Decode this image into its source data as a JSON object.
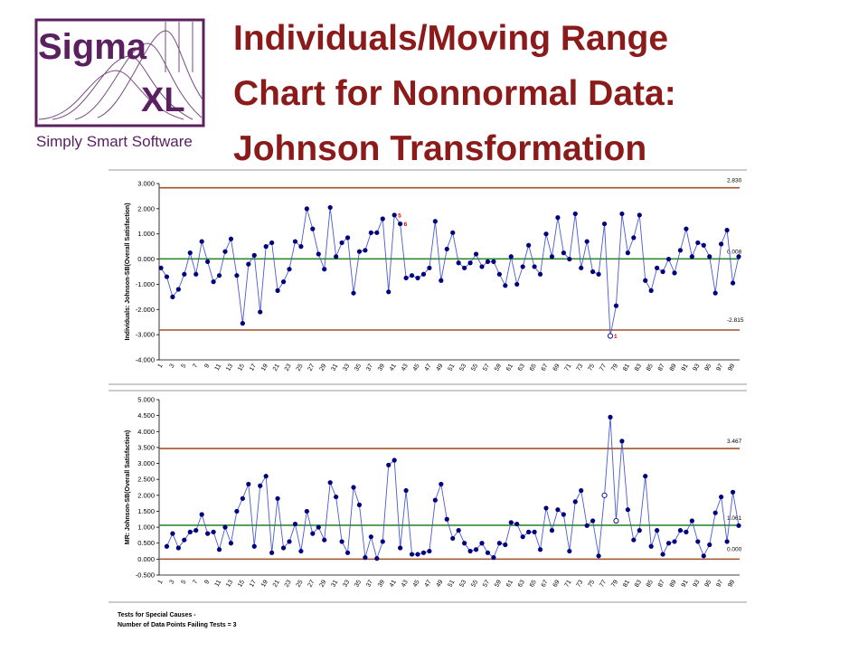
{
  "logo": {
    "word1": "Sigma",
    "word2": "XL",
    "tagline": "Simply Smart Software",
    "color": "#5a2060"
  },
  "title": {
    "line1": "Individuals/Moving Range",
    "line2": "Chart for Nonnormal Data:",
    "line3": "Johnson Transformation",
    "color": "#8b1a1a"
  },
  "chart_data": [
    {
      "type": "line",
      "name": "individuals",
      "ylabel": "Individuals: Johnson-SB(Overall Satisfaction)",
      "ylim": [
        -4,
        3
      ],
      "yticks": [
        "3.000",
        "2.000",
        "1.000",
        "0.000",
        "-1.000",
        "-2.000",
        "-3.000",
        "-4.000"
      ],
      "x": [
        1,
        2,
        3,
        4,
        5,
        6,
        7,
        8,
        9,
        10,
        11,
        12,
        13,
        14,
        15,
        16,
        17,
        18,
        19,
        20,
        21,
        22,
        23,
        24,
        25,
        26,
        27,
        28,
        29,
        30,
        31,
        32,
        33,
        34,
        35,
        36,
        37,
        38,
        39,
        40,
        41,
        42,
        43,
        44,
        45,
        46,
        47,
        48,
        49,
        50,
        51,
        52,
        53,
        54,
        55,
        56,
        57,
        58,
        59,
        60,
        61,
        62,
        63,
        64,
        65,
        66,
        67,
        68,
        69,
        70,
        71,
        72,
        73,
        74,
        75,
        76,
        77,
        78,
        79,
        80,
        81,
        82,
        83,
        84,
        85,
        86,
        87,
        88,
        89,
        90,
        91,
        92,
        93,
        94,
        95,
        96,
        97,
        98,
        99,
        100
      ],
      "xtick_labels": [
        "1",
        "3",
        "5",
        "7",
        "9",
        "11",
        "13",
        "15",
        "17",
        "19",
        "21",
        "23",
        "25",
        "27",
        "29",
        "31",
        "33",
        "35",
        "37",
        "39",
        "41",
        "43",
        "45",
        "47",
        "49",
        "51",
        "53",
        "55",
        "57",
        "59",
        "61",
        "63",
        "65",
        "67",
        "69",
        "71",
        "73",
        "75",
        "77",
        "79",
        "81",
        "83",
        "85",
        "87",
        "89",
        "91",
        "93",
        "95",
        "97",
        "99"
      ],
      "values": [
        -0.35,
        -0.7,
        -1.5,
        -1.2,
        -0.6,
        0.25,
        -0.6,
        0.7,
        -0.1,
        -0.9,
        -0.65,
        0.3,
        0.8,
        -0.65,
        -2.55,
        -0.2,
        0.15,
        -2.1,
        0.5,
        0.65,
        -1.25,
        -0.9,
        -0.4,
        0.7,
        0.5,
        2.0,
        1.2,
        0.2,
        -0.4,
        2.05,
        0.1,
        0.65,
        0.85,
        -1.35,
        0.3,
        0.35,
        1.05,
        1.05,
        1.6,
        -1.3,
        1.75,
        1.4,
        -0.75,
        -0.65,
        -0.75,
        -0.6,
        -0.35,
        1.5,
        -0.85,
        0.4,
        1.05,
        -0.15,
        -0.35,
        -0.15,
        0.2,
        -0.3,
        -0.1,
        -0.1,
        -0.6,
        -1.05,
        0.1,
        -1.0,
        -0.3,
        0.55,
        -0.3,
        -0.6,
        1.0,
        0.1,
        1.65,
        0.25,
        0.0,
        1.8,
        -0.35,
        0.7,
        -0.5,
        -0.6,
        1.4,
        -3.05,
        -1.85,
        1.8,
        0.25,
        0.85,
        1.75,
        -0.85,
        -1.25,
        -0.35,
        -0.5,
        0.0,
        -0.55,
        0.35,
        1.2,
        0.1,
        0.65,
        0.55,
        0.1,
        -1.35,
        0.6,
        1.15,
        -0.95,
        0.1
      ],
      "ucl": 2.83,
      "cl": 0.008,
      "lcl": -2.815,
      "ucl_label": "2.830",
      "cl_label": "0.008",
      "lcl_label": "-2.815",
      "flags": [
        {
          "index": 41,
          "label": "5"
        },
        {
          "index": 42,
          "label": "6"
        },
        {
          "index": 78,
          "label": "1"
        }
      ],
      "open_points": [
        78
      ],
      "colors": {
        "series": "#00007f",
        "line": "#4a5ad0",
        "limits": "#a0522d",
        "center": "#2e8b2e",
        "flag": "#e00000"
      }
    },
    {
      "type": "line",
      "name": "moving-range",
      "ylabel": "MR: Johnson-SB(Overall Satisfaction)",
      "ylim": [
        -0.5,
        5
      ],
      "yticks": [
        "5.000",
        "4.500",
        "4.000",
        "3.500",
        "3.000",
        "2.500",
        "2.000",
        "1.500",
        "1.000",
        "0.500",
        "0.000",
        "-0.500"
      ],
      "x": [
        2,
        3,
        4,
        5,
        6,
        7,
        8,
        9,
        10,
        11,
        12,
        13,
        14,
        15,
        16,
        17,
        18,
        19,
        20,
        21,
        22,
        23,
        24,
        25,
        26,
        27,
        28,
        29,
        30,
        31,
        32,
        33,
        34,
        35,
        36,
        37,
        38,
        39,
        40,
        41,
        42,
        43,
        44,
        45,
        46,
        47,
        48,
        49,
        50,
        51,
        52,
        53,
        54,
        55,
        56,
        57,
        58,
        59,
        60,
        61,
        62,
        63,
        64,
        65,
        66,
        67,
        68,
        69,
        70,
        71,
        72,
        73,
        74,
        75,
        76,
        77,
        78,
        79,
        80,
        81,
        82,
        83,
        84,
        85,
        86,
        87,
        88,
        89,
        90,
        91,
        92,
        93,
        94,
        95,
        96,
        97,
        98,
        99,
        100
      ],
      "xtick_labels": [
        "1",
        "3",
        "5",
        "7",
        "9",
        "11",
        "13",
        "15",
        "17",
        "19",
        "21",
        "23",
        "25",
        "27",
        "29",
        "31",
        "33",
        "35",
        "37",
        "39",
        "41",
        "43",
        "45",
        "47",
        "49",
        "51",
        "53",
        "55",
        "57",
        "59",
        "61",
        "63",
        "65",
        "67",
        "69",
        "71",
        "73",
        "75",
        "77",
        "79",
        "81",
        "83",
        "85",
        "87",
        "89",
        "91",
        "93",
        "95",
        "97",
        "99"
      ],
      "values": [
        0.4,
        0.8,
        0.35,
        0.6,
        0.85,
        0.9,
        1.4,
        0.8,
        0.85,
        0.3,
        1.0,
        0.5,
        1.5,
        1.9,
        2.35,
        0.4,
        2.3,
        2.6,
        0.2,
        1.9,
        0.35,
        0.55,
        1.1,
        0.25,
        1.5,
        0.8,
        1.0,
        0.6,
        2.4,
        1.95,
        0.55,
        0.2,
        2.25,
        1.7,
        0.05,
        0.7,
        0.02,
        0.55,
        2.95,
        3.1,
        0.35,
        2.15,
        0.15,
        0.15,
        0.2,
        0.25,
        1.85,
        2.35,
        1.25,
        0.65,
        0.9,
        0.5,
        0.25,
        0.3,
        0.5,
        0.2,
        0.05,
        0.5,
        0.45,
        1.15,
        1.1,
        0.7,
        0.85,
        0.85,
        0.3,
        1.6,
        0.9,
        1.55,
        1.4,
        0.25,
        1.8,
        2.15,
        1.05,
        1.2,
        0.1,
        2.0,
        4.45,
        1.2,
        3.7,
        1.55,
        0.6,
        0.9,
        2.6,
        0.4,
        0.9,
        0.15,
        0.5,
        0.55,
        0.9,
        0.85,
        1.2,
        0.55,
        0.1,
        0.45,
        1.45,
        1.95,
        0.55,
        2.1,
        1.05
      ],
      "ucl": 3.467,
      "cl": 1.061,
      "lcl": 0.0,
      "ucl_label": "3.467",
      "cl_label": "1.061",
      "lcl_label": "0.000",
      "open_points": [
        77,
        79
      ],
      "colors": {
        "series": "#00007f",
        "line": "#4a5ad0",
        "limits": "#a0522d",
        "center": "#2e8b2e"
      }
    }
  ],
  "footer": {
    "line1": "Tests for Special Causes -",
    "line2": "Number of Data Points Failing Tests = 3"
  }
}
